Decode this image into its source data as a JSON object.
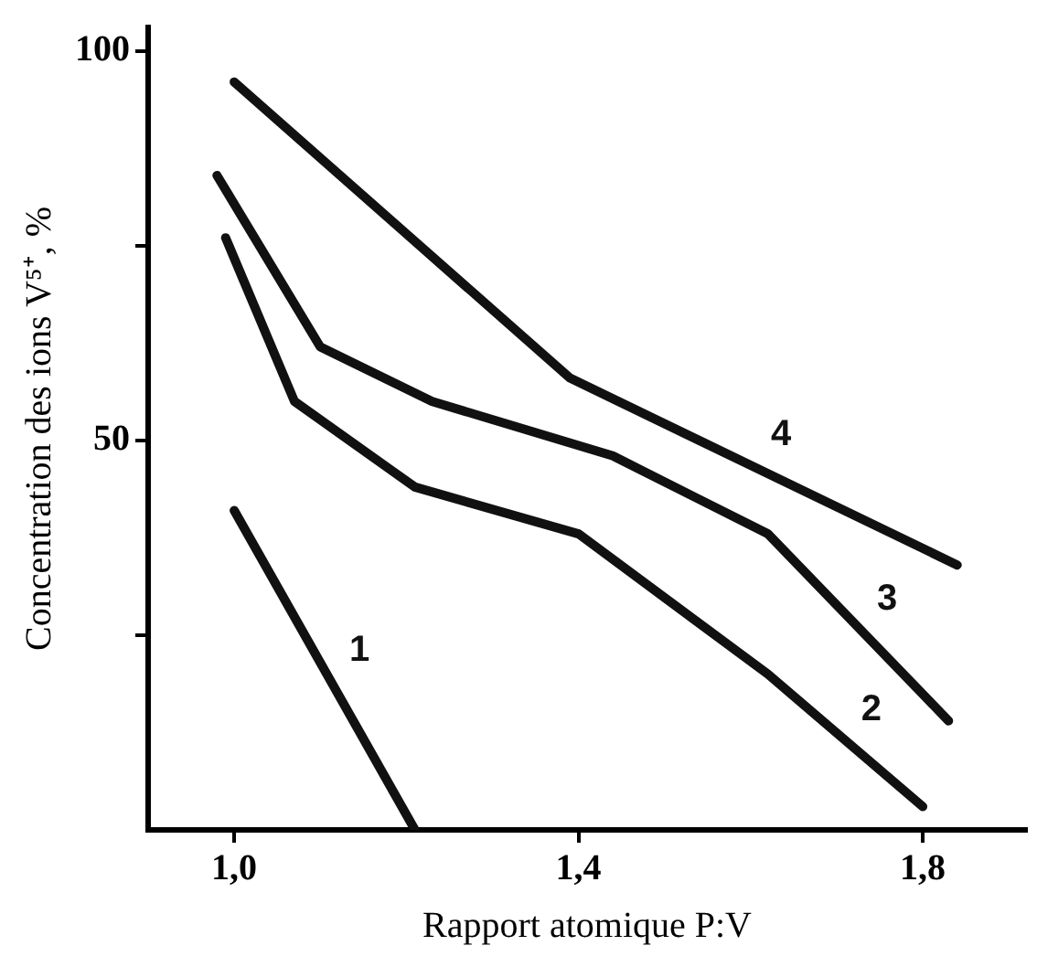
{
  "chart_data": {
    "type": "line",
    "xlabel": "Rapport atomique P:V",
    "ylabel": "Concentration des ions V⁵⁺, %",
    "xlim": [
      0.9,
      1.92
    ],
    "xticks": [
      {
        "value": 1.0,
        "label": "1,0"
      },
      {
        "value": 1.4,
        "label": "1,4"
      },
      {
        "value": 1.8,
        "label": "1,8"
      }
    ],
    "ylim": [
      0,
      103
    ],
    "yticks": [
      {
        "value": 25,
        "label": null
      },
      50,
      {
        "value": 75,
        "label": null
      },
      100
    ],
    "grid": false,
    "legend": false,
    "marker": "none",
    "line_style": "solid",
    "series": [
      {
        "name": "1",
        "color": "#111111",
        "x": [
          1.0,
          1.21
        ],
        "values": [
          41,
          0
        ]
      },
      {
        "name": "2",
        "color": "#111111",
        "x": [
          0.99,
          1.07,
          1.21,
          1.4,
          1.62,
          1.8
        ],
        "values": [
          76,
          55,
          44,
          38,
          20,
          3
        ]
      },
      {
        "name": "3",
        "color": "#111111",
        "x": [
          0.98,
          1.1,
          1.23,
          1.44,
          1.62,
          1.83
        ],
        "values": [
          84,
          62,
          55,
          48,
          38,
          14
        ]
      },
      {
        "name": "4",
        "color": "#111111",
        "x": [
          1.0,
          1.39,
          1.84
        ],
        "values": [
          96,
          58,
          34
        ]
      }
    ]
  }
}
